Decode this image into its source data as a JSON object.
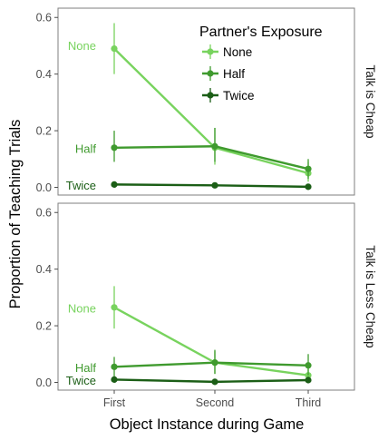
{
  "chart_data": {
    "type": "line",
    "x_categories": [
      "First",
      "Second",
      "Third"
    ],
    "xlabel": "Object Instance during Game",
    "ylabel": "Proportion of Teaching Trials",
    "ylim": [
      0,
      0.62
    ],
    "yticks": [
      "0.0",
      "0.2",
      "0.4",
      "0.6"
    ],
    "ytick_values": [
      0,
      0.2,
      0.4,
      0.6
    ],
    "legend": {
      "title": "Partner's Exposure",
      "placement": "top-right (inside upper panel)",
      "entries": [
        "None",
        "Half",
        "Twice"
      ]
    },
    "colors": {
      "None": "#78d35e",
      "Half": "#3f9a2e",
      "Twice": "#1b5e16"
    },
    "panels": [
      {
        "facet_label": "Talk is Cheap",
        "series": [
          {
            "name": "None",
            "label": "None",
            "values": [
              0.49,
              0.14,
              0.05
            ],
            "ci": [
              [
                0.4,
                0.58
              ],
              [
                0.08,
                0.21
              ],
              [
                0.02,
                0.09
              ]
            ]
          },
          {
            "name": "Half",
            "label": "Half",
            "values": [
              0.14,
              0.145,
              0.065
            ],
            "ci": [
              [
                0.09,
                0.2
              ],
              [
                0.09,
                0.21
              ],
              [
                0.03,
                0.1
              ]
            ]
          },
          {
            "name": "Twice",
            "label": "Twice",
            "values": [
              0.01,
              0.007,
              0.002
            ],
            "ci": [
              [
                0.0,
                0.02
              ],
              [
                0.0,
                0.015
              ],
              [
                0.0,
                0.005
              ]
            ]
          }
        ]
      },
      {
        "facet_label": "Talk is Less Cheap",
        "series": [
          {
            "name": "None",
            "label": "None",
            "values": [
              0.265,
              0.07,
              0.025
            ],
            "ci": [
              [
                0.19,
                0.34
              ],
              [
                0.03,
                0.11
              ],
              [
                0.0,
                0.05
              ]
            ]
          },
          {
            "name": "Half",
            "label": "Half",
            "values": [
              0.055,
              0.07,
              0.06
            ],
            "ci": [
              [
                0.02,
                0.09
              ],
              [
                0.03,
                0.115
              ],
              [
                0.025,
                0.1
              ]
            ]
          },
          {
            "name": "Twice",
            "label": "Twice",
            "values": [
              0.01,
              0.002,
              0.008
            ],
            "ci": [
              [
                0.0,
                0.02
              ],
              [
                0.0,
                0.005
              ],
              [
                0.0,
                0.02
              ]
            ]
          }
        ]
      }
    ]
  }
}
